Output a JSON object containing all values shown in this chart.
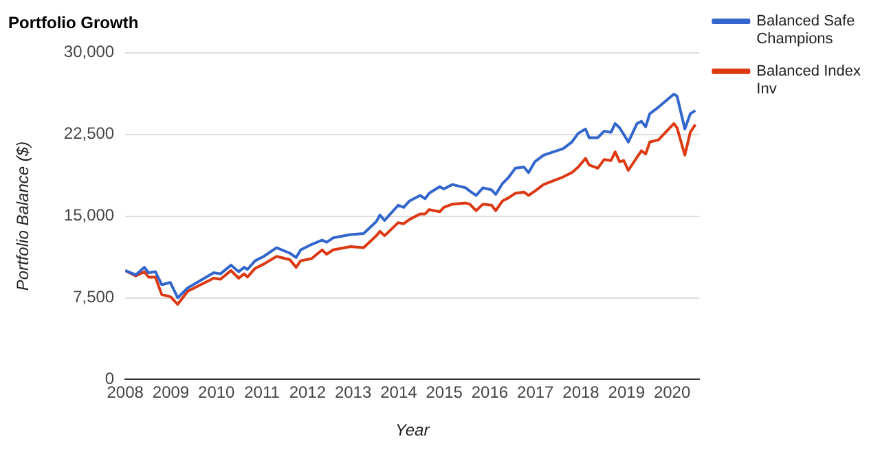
{
  "chart_data": {
    "type": "line",
    "title": "Portfolio Growth",
    "xlabel": "Year",
    "ylabel": "Portfolio Balance ($)",
    "x": [
      2008.0,
      2008.23,
      2008.42,
      2008.51,
      2008.66,
      2008.8,
      2008.99,
      2009.15,
      2009.37,
      2009.94,
      2010.09,
      2010.32,
      2010.49,
      2010.61,
      2010.68,
      2010.85,
      2011.04,
      2011.32,
      2011.61,
      2011.75,
      2011.85,
      2012.09,
      2012.32,
      2012.42,
      2012.56,
      2012.94,
      2013.23,
      2013.51,
      2013.59,
      2013.69,
      2013.99,
      2014.11,
      2014.24,
      2014.47,
      2014.58,
      2014.67,
      2014.9,
      2014.99,
      2015.18,
      2015.47,
      2015.56,
      2015.7,
      2015.85,
      2016.04,
      2016.13,
      2016.28,
      2016.42,
      2016.56,
      2016.75,
      2016.85,
      2016.99,
      2017.18,
      2017.61,
      2017.8,
      2017.94,
      2018.1,
      2018.18,
      2018.37,
      2018.51,
      2018.66,
      2018.75,
      2018.85,
      2018.94,
      2019.04,
      2019.23,
      2019.33,
      2019.42,
      2019.51,
      2019.7,
      2020.04,
      2020.11,
      2020.28,
      2020.4,
      2020.51
    ],
    "series": [
      {
        "name": "Balanced Safe Champions",
        "color": "#3366cc",
        "values": [
          10000,
          9600,
          10300,
          9800,
          9900,
          8700,
          8900,
          7500,
          8400,
          9800,
          9700,
          10500,
          9900,
          10300,
          10100,
          10900,
          11300,
          12100,
          11600,
          11200,
          11900,
          12400,
          12800,
          12600,
          13000,
          13300,
          13400,
          14500,
          15100,
          14600,
          16000,
          15800,
          16400,
          16900,
          16600,
          17100,
          17700,
          17500,
          17900,
          17600,
          17300,
          16900,
          17600,
          17400,
          17000,
          18000,
          18600,
          19400,
          19500,
          19000,
          20000,
          20600,
          21200,
          21800,
          22600,
          23000,
          22200,
          22200,
          22800,
          22700,
          23500,
          23100,
          22500,
          21800,
          23500,
          23700,
          23200,
          24400,
          25000,
          26200,
          26000,
          23000,
          24400,
          24700
        ]
      },
      {
        "name": "Balanced Index Inv",
        "color": "#dc3912",
        "values": [
          10000,
          9500,
          9900,
          9400,
          9400,
          7800,
          7600,
          6900,
          8100,
          9300,
          9200,
          10000,
          9300,
          9700,
          9400,
          10200,
          10600,
          11300,
          11000,
          10300,
          10900,
          11100,
          11900,
          11500,
          11900,
          12200,
          12100,
          13200,
          13600,
          13200,
          14400,
          14300,
          14700,
          15200,
          15200,
          15600,
          15400,
          15800,
          16100,
          16200,
          16100,
          15500,
          16100,
          16000,
          15500,
          16400,
          16700,
          17100,
          17200,
          16900,
          17300,
          17900,
          18600,
          19000,
          19500,
          20300,
          19700,
          19400,
          20200,
          20100,
          20900,
          20000,
          20100,
          19200,
          20400,
          21000,
          20700,
          21800,
          22000,
          23500,
          23100,
          20600,
          22700,
          23400
        ]
      }
    ],
    "xlim": [
      2008,
      2020.6
    ],
    "xticks": [
      2008,
      2009,
      2010,
      2011,
      2012,
      2013,
      2014,
      2015,
      2016,
      2017,
      2018,
      2019,
      2020
    ],
    "ylim": [
      0,
      30000
    ],
    "yticks": [
      0,
      {
        "value": 7500,
        "label": "7,500"
      },
      {
        "value": 15000,
        "label": "15,000"
      },
      {
        "value": 22500,
        "label": "22,500"
      },
      {
        "value": 30000,
        "label": "30,000"
      }
    ],
    "grid": "y",
    "legend": "top right",
    "marker": "none",
    "line_style": "solid"
  }
}
